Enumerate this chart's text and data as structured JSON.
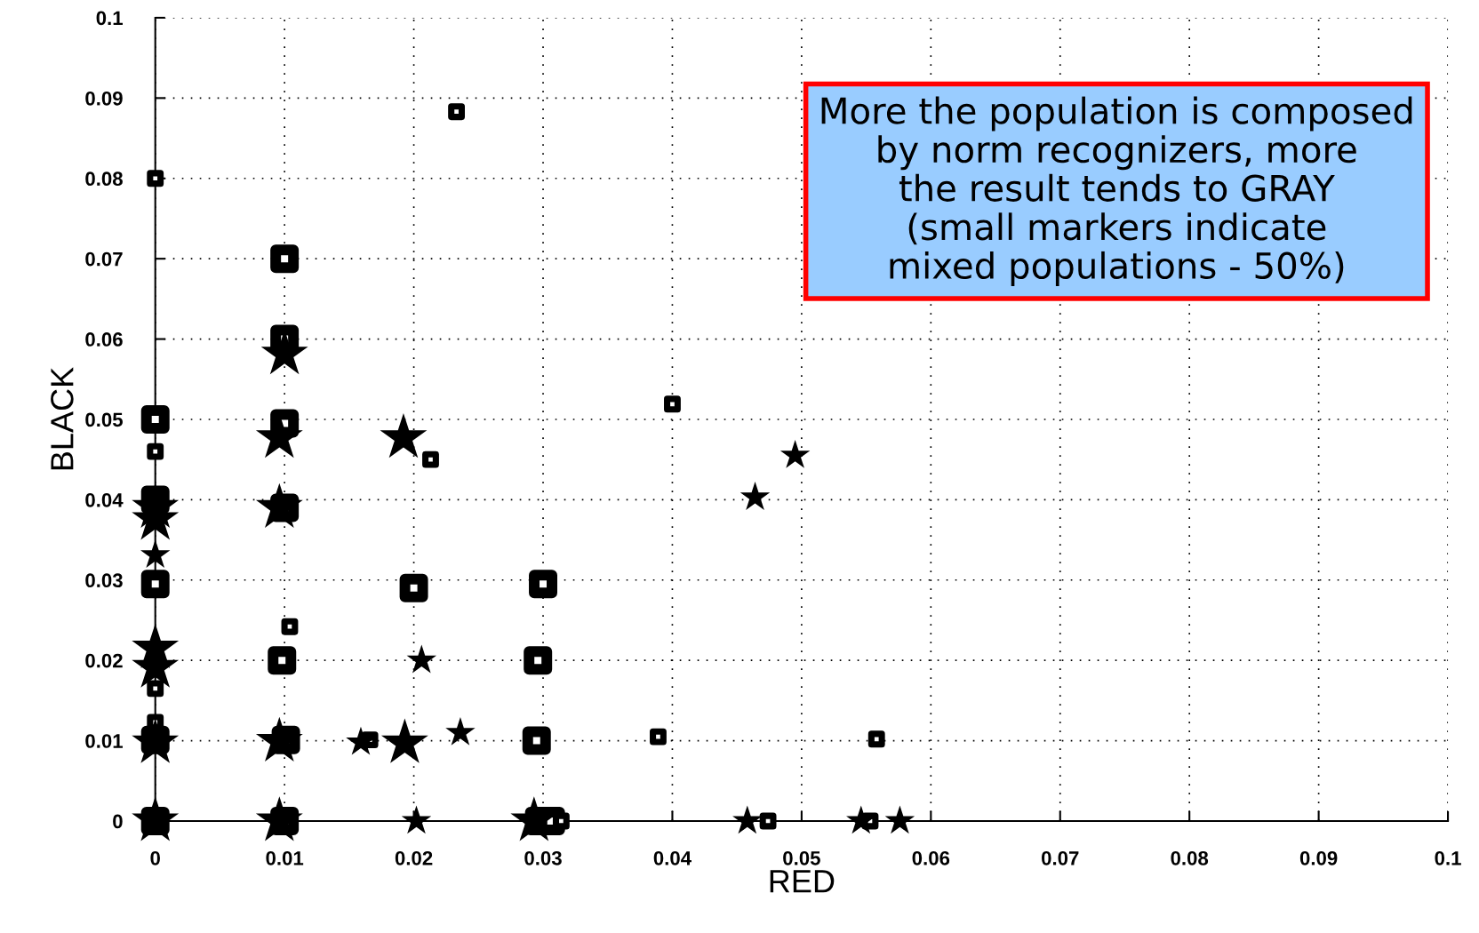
{
  "chart_data": {
    "type": "bubble",
    "xlabel": "RED",
    "ylabel": "BLACK",
    "xlim": [
      0,
      0.1
    ],
    "ylim": [
      0,
      0.1
    ],
    "xticks": [
      0,
      0.01,
      0.02,
      0.03,
      0.04,
      0.05,
      0.06,
      0.07,
      0.08,
      0.09,
      0.1
    ],
    "yticks": [
      0,
      0.01,
      0.02,
      0.03,
      0.04,
      0.05,
      0.06,
      0.07,
      0.08,
      0.09,
      0.1
    ],
    "grid": true,
    "annotations": [
      "More the population is composed\nby norm recognizers, more\nthe result tends to GRAY\n(small markers indicate\nmixed populations - 50%)"
    ],
    "series": [
      {
        "color": "#000000",
        "marker": "square",
        "x": [
          0.01,
          0.01,
          0,
          0.01,
          0,
          0.01,
          0,
          0.02,
          0.03,
          0.0098,
          0.0296,
          0,
          0.0101,
          0.0295,
          0,
          0.01,
          0.0297,
          0.0306
        ],
        "values": [
          0.07,
          0.06,
          0.05,
          0.0495,
          0.04,
          0.039,
          0.0295,
          0.029,
          0.0295,
          0.02,
          0.02,
          0.0101,
          0.0101,
          0.01,
          0,
          0,
          0,
          0
        ],
        "sizes": [
          0.46,
          0.46,
          0.46,
          0.46,
          0.46,
          0.46,
          0.46,
          0.46,
          0.46,
          0.46,
          0.46,
          0.46,
          0.46,
          0.46,
          0.46,
          0.46,
          0.46,
          0.46
        ]
      },
      {
        "color": "#000000",
        "marker": "square",
        "x": [
          0.0233,
          0,
          0,
          0.0213,
          0.04,
          0.0104,
          0,
          0,
          0.0166,
          0.0389,
          0.0558,
          0.0314,
          0.0474,
          0.0553
        ],
        "values": [
          0.0883,
          0.08,
          0.046,
          0.045,
          0.0519,
          0.0242,
          0.0165,
          0.0123,
          0.0101,
          0.0105,
          0.0102,
          0,
          0,
          0
        ],
        "sizes": [
          0.16,
          0.16,
          0.16,
          0.16,
          0.16,
          0.16,
          0.16,
          0.16,
          0.16,
          0.16,
          0.16,
          0.16,
          0.16,
          0.16
        ]
      },
      {
        "color": "#000000",
        "marker": "star",
        "x": [
          0.01,
          0.0096,
          0.0192,
          0,
          0,
          0.0096,
          0,
          0,
          0,
          0.0096,
          0.0193,
          0,
          0.0096,
          0.0293
        ],
        "values": [
          0.0581,
          0.0477,
          0.0477,
          0.039,
          0.0375,
          0.039,
          0.0215,
          0.0191,
          0.0097,
          0.0099,
          0.0097,
          0,
          0,
          0
        ],
        "sizes": [
          1,
          1,
          1,
          1,
          1,
          1,
          1,
          1,
          1,
          1,
          1,
          1,
          1,
          1
        ]
      },
      {
        "color": "#000000",
        "marker": "star",
        "x": [
          0,
          0.0206,
          0.0159,
          0.0236,
          0.0202,
          0.0458,
          0.0546,
          0.0576,
          0.0464,
          0.0495
        ],
        "values": [
          0.0331,
          0.02,
          0.0098,
          0.011,
          0,
          0,
          0,
          0,
          0.0403,
          0.0455
        ],
        "sizes": [
          0.4,
          0.4,
          0.4,
          0.4,
          0.4,
          0.4,
          0.4,
          0.4,
          0.4,
          0.4
        ]
      }
    ]
  }
}
